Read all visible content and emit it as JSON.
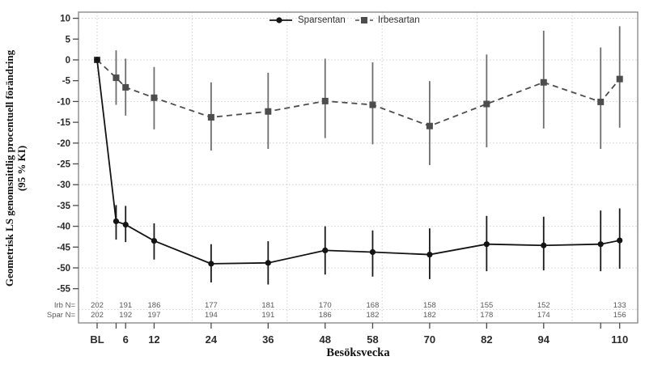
{
  "chart_data": {
    "type": "line",
    "title": "",
    "xlabel": "Besöksvecka",
    "ylabel_line1": "Geometrisk LS genomsnittlig procentuell förändring",
    "ylabel_line2": "(95 % KI)",
    "x_unit": "week",
    "x_tick_labels": [
      "BL",
      "6",
      "12",
      "24",
      "36",
      "48",
      "58",
      "70",
      "82",
      "94",
      "110"
    ],
    "x_tick_weeks": [
      0,
      6,
      12,
      24,
      36,
      48,
      58,
      70,
      82,
      94,
      110
    ],
    "x_minor_tick_weeks": [
      4,
      106
    ],
    "y_ticks": [
      10,
      5,
      0,
      -5,
      -10,
      -15,
      -20,
      -25,
      -30,
      -35,
      -40,
      -45,
      -50,
      -55
    ],
    "ylim": [
      -63.2,
      11.5
    ],
    "xlim_weeks": [
      -3.9,
      113.8
    ],
    "grid": {
      "horizontal_every": 10,
      "horizontal_range": [
        10,
        -60
      ],
      "vertical_weeks": [
        0,
        20,
        40,
        60,
        80,
        100
      ],
      "style": "dotted"
    },
    "legend_position": "top-center-inside",
    "weeks": [
      0,
      4,
      6,
      12,
      24,
      36,
      48,
      58,
      70,
      82,
      94,
      106,
      110
    ],
    "series": [
      {
        "name": "Irbesartan",
        "marker": "square",
        "line_style": "dashed",
        "color": "#4d4d4d",
        "error_color": "#6e6e6e",
        "values": [
          0.0,
          -4.3,
          -6.6,
          -9.1,
          -13.8,
          -12.4,
          -9.9,
          -10.8,
          -15.9,
          -10.6,
          -5.4,
          -10.1,
          -4.6
        ],
        "ci_low": [
          null,
          -10.8,
          -13.4,
          -16.7,
          -21.8,
          -21.4,
          -18.8,
          -20.3,
          -25.3,
          -21.0,
          -16.5,
          -21.4,
          -16.3
        ],
        "ci_high": [
          null,
          2.3,
          0.3,
          -1.7,
          -5.4,
          -3.1,
          0.3,
          -0.6,
          -5.1,
          1.3,
          7.0,
          3.0,
          8.1
        ]
      },
      {
        "name": "Sparsentan",
        "marker": "circle",
        "line_style": "solid",
        "color": "#141414",
        "error_color": "#1a1a1a",
        "values": [
          0.0,
          -38.8,
          -39.6,
          -43.5,
          -49.0,
          -48.8,
          -45.8,
          -46.2,
          -46.8,
          -44.3,
          -44.6,
          -44.3,
          -43.4
        ],
        "ci_low": [
          null,
          -43.2,
          -43.8,
          -48.0,
          -53.5,
          -54.0,
          -51.6,
          -52.1,
          -52.7,
          -50.8,
          -50.6,
          -50.8,
          -50.2
        ],
        "ci_high": [
          null,
          -34.9,
          -35.1,
          -39.3,
          -44.3,
          -43.6,
          -40.0,
          -41.0,
          -40.5,
          -37.5,
          -37.7,
          -36.2,
          -35.7
        ]
      }
    ],
    "n_table": {
      "aligned_to_weeks": [
        0,
        6,
        12,
        24,
        36,
        48,
        58,
        70,
        82,
        94,
        110
      ],
      "rows": [
        {
          "label": "Irb N=",
          "values": [
            202,
            191,
            186,
            177,
            181,
            170,
            168,
            158,
            155,
            152,
            133
          ]
        },
        {
          "label": "Spar N=",
          "values": [
            202,
            192,
            197,
            194,
            191,
            186,
            182,
            182,
            178,
            174,
            156
          ]
        }
      ]
    },
    "colors": {
      "grid": "#cfcfcf",
      "box_border": "#8c8c8c",
      "tick": "#4a4a4a",
      "tick_label": "#2b2b2b",
      "n_text": "#5a5a5a"
    }
  },
  "legend": {
    "item1": "Sparsentan",
    "item2": "Irbesartan"
  }
}
